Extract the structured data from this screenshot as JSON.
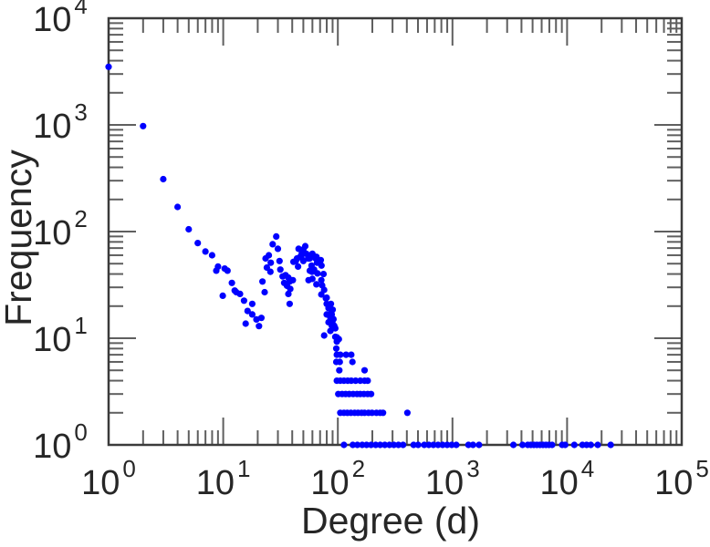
{
  "figure": {
    "background": "#ffffff"
  },
  "chart_data": {
    "type": "scatter",
    "title": "",
    "xlabel": "Degree (d)",
    "ylabel": "Frequency",
    "x_scale": "log",
    "y_scale": "log",
    "xlim": [
      1,
      100000
    ],
    "ylim": [
      1,
      10000
    ],
    "tick_base": "10",
    "x_tick_exponents": [
      0,
      1,
      2,
      3,
      4,
      5
    ],
    "y_tick_exponents": [
      0,
      1,
      2,
      3,
      4
    ],
    "minor_tick_multiples": [
      2,
      3,
      4,
      5,
      6,
      7,
      8,
      9
    ],
    "grid": false,
    "legend": null,
    "marker": {
      "shape": "circle",
      "color": "#0000ff",
      "radius_px": 3.6
    },
    "colors": {
      "axis": "#3b3b3b",
      "tick": "#5f5f5f",
      "text": "#262626"
    },
    "points": [
      [
        1,
        3500
      ],
      [
        2,
        975
      ],
      [
        3,
        310
      ],
      [
        4,
        170
      ],
      [
        5,
        105
      ],
      [
        6,
        78
      ],
      [
        7,
        65
      ],
      [
        8,
        60
      ],
      [
        9,
        47
      ],
      [
        8.7,
        43
      ],
      [
        10.3,
        45
      ],
      [
        9.9,
        25
      ],
      [
        10.9,
        43
      ],
      [
        11.9,
        33
      ],
      [
        12.6,
        28
      ],
      [
        13,
        27
      ],
      [
        14,
        26
      ],
      [
        15.2,
        22.5
      ],
      [
        16.3,
        18
      ],
      [
        15.7,
        13.7
      ],
      [
        17.9,
        21
      ],
      [
        17.9,
        16.7
      ],
      [
        19.5,
        15
      ],
      [
        20.5,
        13
      ],
      [
        21.5,
        15.5
      ],
      [
        22,
        34
      ],
      [
        23,
        27
      ],
      [
        23.4,
        56
      ],
      [
        24,
        46
      ],
      [
        25,
        60
      ],
      [
        25.8,
        42
      ],
      [
        26,
        51
      ],
      [
        27,
        76
      ],
      [
        29,
        90
      ],
      [
        30,
        69
      ],
      [
        31,
        53
      ],
      [
        31.5,
        44
      ],
      [
        33,
        38
      ],
      [
        34,
        33
      ],
      [
        35,
        39
      ],
      [
        36,
        31
      ],
      [
        37,
        37
      ],
      [
        37,
        26
      ],
      [
        38,
        34
      ],
      [
        38.5,
        29
      ],
      [
        38,
        21
      ],
      [
        39,
        35
      ],
      [
        40.5,
        35
      ],
      [
        41,
        52
      ],
      [
        43,
        53
      ],
      [
        44,
        56
      ],
      [
        45,
        47
      ],
      [
        45.5,
        69
      ],
      [
        47,
        58
      ],
      [
        48,
        57
      ],
      [
        48.5,
        62
      ],
      [
        50,
        53
      ],
      [
        50,
        68
      ],
      [
        52,
        73
      ],
      [
        53,
        62
      ],
      [
        55,
        56
      ],
      [
        55.5,
        35
      ],
      [
        57,
        43
      ],
      [
        57,
        56
      ],
      [
        59,
        48
      ],
      [
        59.5,
        42
      ],
      [
        59.5,
        60
      ],
      [
        60,
        62
      ],
      [
        60,
        36
      ],
      [
        62,
        44
      ],
      [
        64,
        56
      ],
      [
        65,
        58
      ],
      [
        65,
        32
      ],
      [
        66,
        51
      ],
      [
        66.5,
        40.5
      ],
      [
        68,
        52
      ],
      [
        71,
        54
      ],
      [
        71.7,
        35
      ],
      [
        72,
        48
      ],
      [
        71.7,
        25.7
      ],
      [
        73,
        31.3
      ],
      [
        75,
        40
      ],
      [
        76,
        28.4
      ],
      [
        76,
        10.6
      ],
      [
        78.7,
        23.7
      ],
      [
        80,
        21
      ],
      [
        80,
        16.7
      ],
      [
        80,
        24
      ],
      [
        83,
        19.2
      ],
      [
        83,
        14.1
      ],
      [
        85,
        19.5
      ],
      [
        86,
        15.7
      ],
      [
        86,
        11.7
      ],
      [
        87,
        21
      ],
      [
        87,
        17
      ],
      [
        88.5,
        16.7
      ],
      [
        88.5,
        13.2
      ],
      [
        90,
        18.5
      ],
      [
        90,
        15
      ],
      [
        90,
        13.7
      ],
      [
        91.5,
        15.1
      ],
      [
        93,
        13.1
      ],
      [
        90,
        12.4
      ],
      [
        95,
        12.4
      ],
      [
        95,
        10.3
      ],
      [
        98,
        10.2
      ],
      [
        98,
        9.3
      ],
      [
        102,
        9.8
      ],
      [
        98,
        7
      ],
      [
        105,
        7
      ],
      [
        118,
        7
      ],
      [
        131,
        7
      ],
      [
        97,
        8
      ],
      [
        97,
        6
      ],
      [
        104,
        6
      ],
      [
        134,
        6
      ],
      [
        103,
        5
      ],
      [
        171,
        5
      ],
      [
        98,
        4
      ],
      [
        105,
        4
      ],
      [
        113,
        4
      ],
      [
        122,
        4
      ],
      [
        131,
        4
      ],
      [
        143,
        4
      ],
      [
        157,
        4
      ],
      [
        171,
        4
      ],
      [
        182,
        4
      ],
      [
        101,
        3
      ],
      [
        109,
        3
      ],
      [
        117,
        3
      ],
      [
        126,
        3
      ],
      [
        136,
        3
      ],
      [
        147,
        3
      ],
      [
        157,
        3
      ],
      [
        169,
        3
      ],
      [
        182,
        3
      ],
      [
        195,
        3
      ],
      [
        105,
        2
      ],
      [
        113,
        2
      ],
      [
        121,
        2
      ],
      [
        130,
        2
      ],
      [
        140,
        2
      ],
      [
        150,
        2
      ],
      [
        161,
        2
      ],
      [
        171,
        2
      ],
      [
        185,
        2
      ],
      [
        199,
        2
      ],
      [
        217,
        2
      ],
      [
        234,
        2
      ],
      [
        248,
        2
      ],
      [
        404,
        2
      ],
      [
        113,
        1
      ],
      [
        135,
        1
      ],
      [
        148,
        1
      ],
      [
        163,
        1
      ],
      [
        178,
        1
      ],
      [
        195,
        1
      ],
      [
        214,
        1
      ],
      [
        234,
        1
      ],
      [
        257,
        1
      ],
      [
        282,
        1
      ],
      [
        308,
        1
      ],
      [
        338,
        1
      ],
      [
        371,
        1
      ],
      [
        458,
        1
      ],
      [
        502,
        1
      ],
      [
        567,
        1
      ],
      [
        622,
        1
      ],
      [
        682,
        1
      ],
      [
        748,
        1
      ],
      [
        820,
        1
      ],
      [
        899,
        1
      ],
      [
        985,
        1
      ],
      [
        1080,
        1
      ],
      [
        1378,
        1
      ],
      [
        1510,
        1
      ],
      [
        1706,
        1
      ],
      [
        3400,
        1
      ],
      [
        4090,
        1
      ],
      [
        4540,
        1
      ],
      [
        4830,
        1
      ],
      [
        5130,
        1
      ],
      [
        5450,
        1
      ],
      [
        5800,
        1
      ],
      [
        6160,
        1
      ],
      [
        6550,
        1
      ],
      [
        6960,
        1
      ],
      [
        7400,
        1
      ],
      [
        9050,
        1
      ],
      [
        9620,
        1
      ],
      [
        11560,
        1
      ],
      [
        13600,
        1
      ],
      [
        14800,
        1
      ],
      [
        16100,
        1
      ],
      [
        18500,
        1
      ],
      [
        24000,
        1
      ]
    ]
  }
}
